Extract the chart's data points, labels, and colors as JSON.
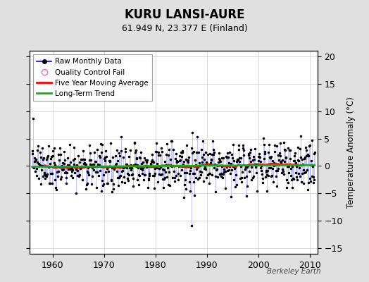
{
  "title": "KURU LANSI-AURE",
  "subtitle": "61.949 N, 23.377 E (Finland)",
  "ylabel": "Temperature Anomaly (°C)",
  "watermark": "Berkeley Earth",
  "year_start": 1956,
  "year_end": 2011,
  "ylim": [
    -16,
    21
  ],
  "yticks": [
    -15,
    -10,
    -5,
    0,
    5,
    10,
    15,
    20
  ],
  "xticks": [
    1960,
    1970,
    1980,
    1990,
    2000,
    2010
  ],
  "bg_color": "#e0e0e0",
  "plot_bg_color": "#ffffff",
  "stem_color": "#aaaaff",
  "dot_color": "#000000",
  "moving_avg_color": "#ff0000",
  "trend_color": "#00bb00",
  "qc_color": "#ff69b4",
  "legend_raw_line_color": "#0000ff",
  "seed": 137
}
